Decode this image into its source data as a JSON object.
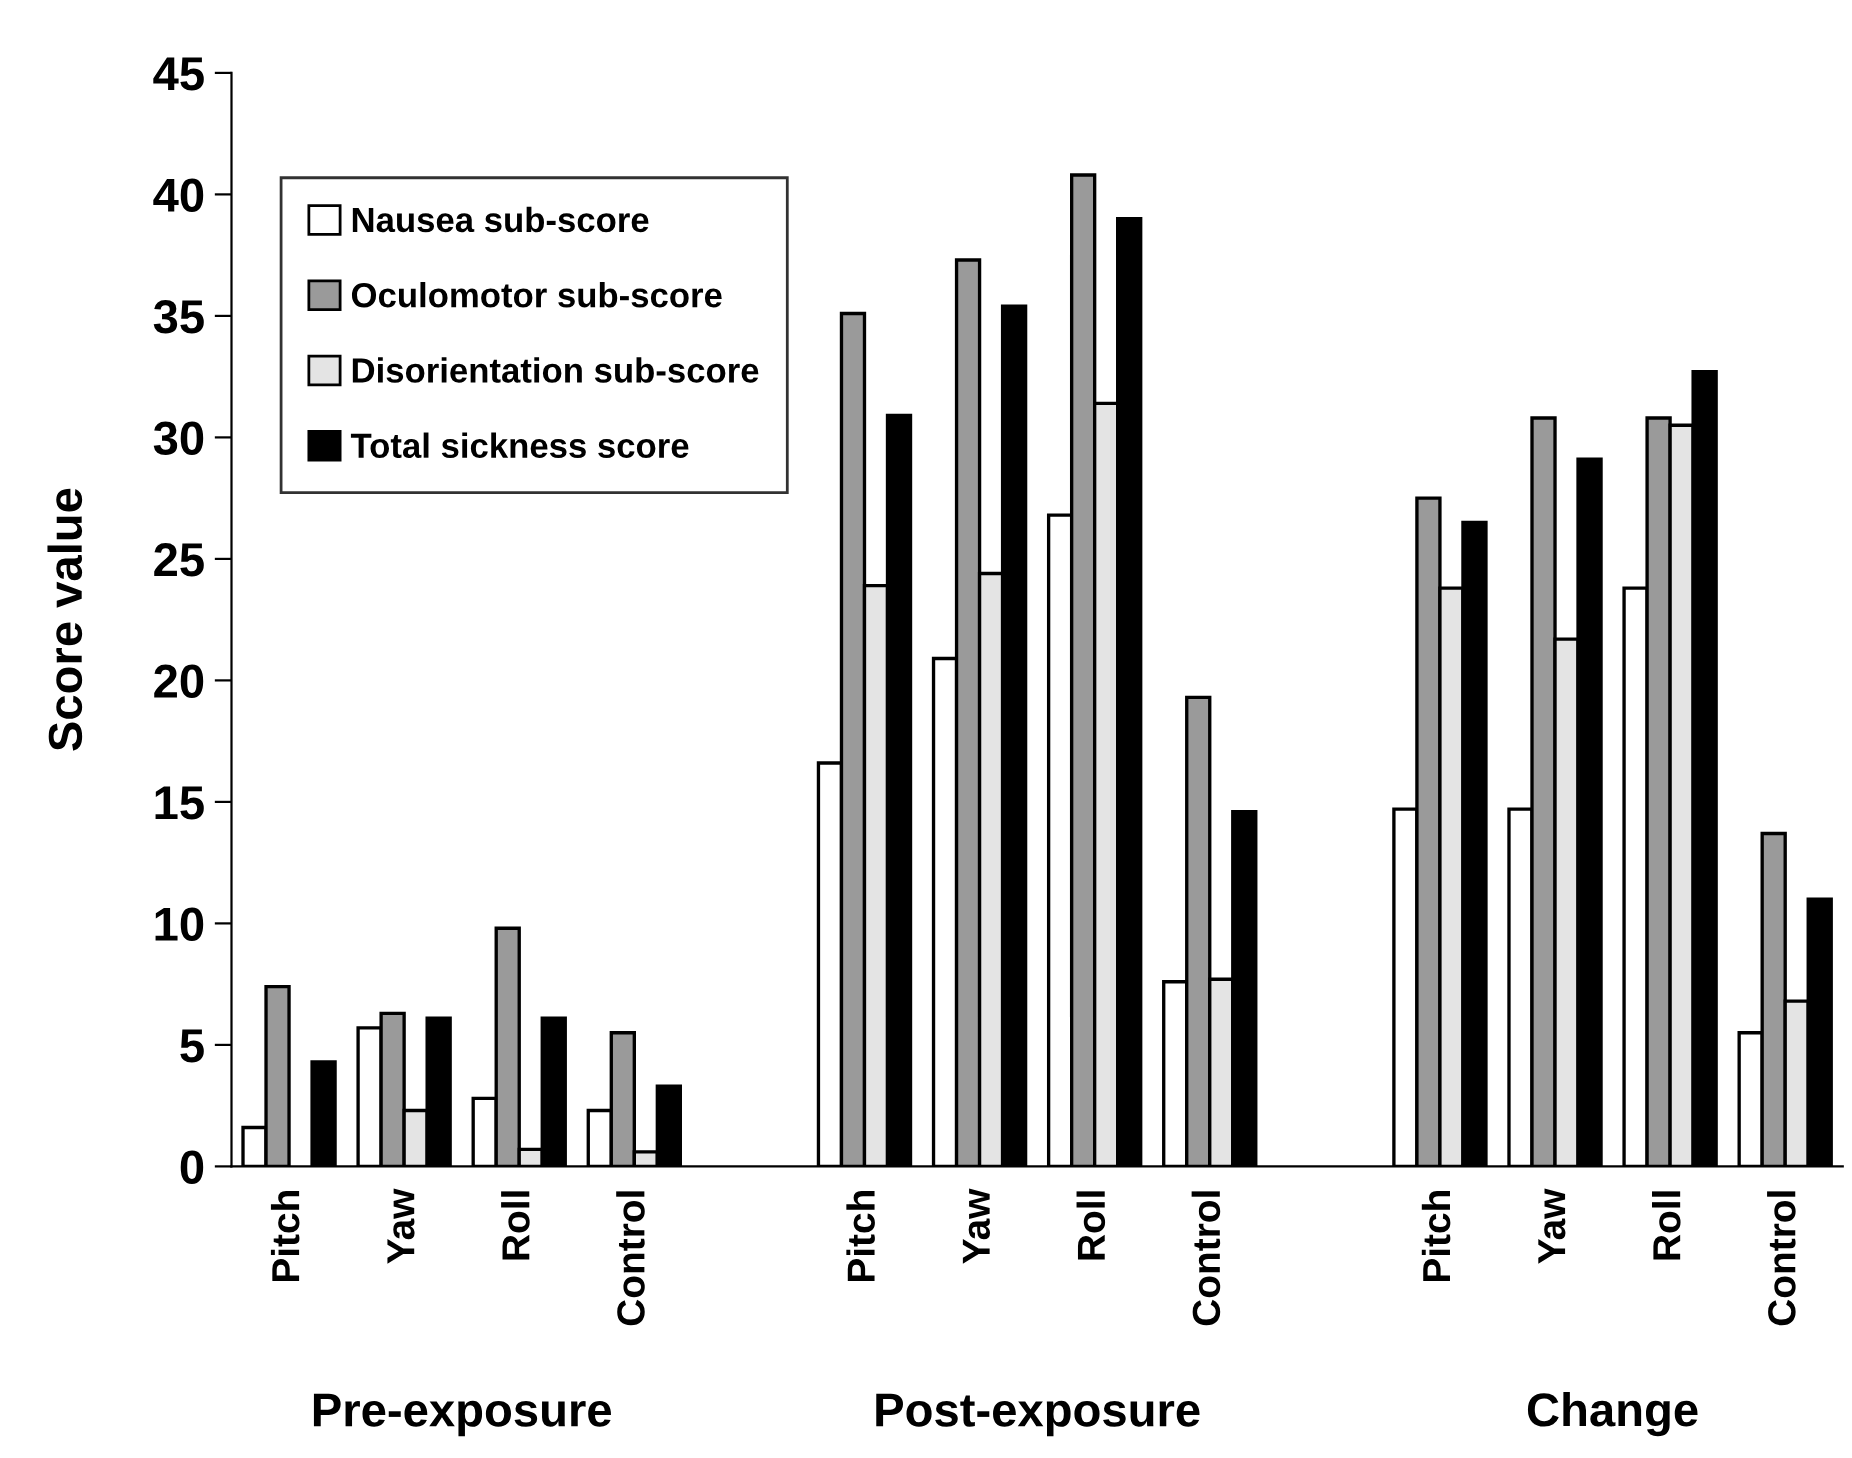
{
  "chart_data": {
    "type": "bar",
    "categories": [
      "Pitch",
      "Yaw",
      "Roll",
      "Control",
      null,
      "Pitch",
      "Yaw",
      "Roll",
      "Control",
      null,
      "Pitch",
      "Yaw",
      "Roll",
      "Control"
    ],
    "series": [
      {
        "name": "Nausea sub-score",
        "color": "#ffffff",
        "values": [
          1.6,
          5.7,
          2.8,
          2.3,
          null,
          16.6,
          20.9,
          26.8,
          7.6,
          null,
          14.7,
          14.7,
          23.8,
          5.5
        ]
      },
      {
        "name": "Oculomotor sub-score",
        "color": "#9a9a9a",
        "values": [
          7.4,
          6.3,
          9.8,
          5.5,
          null,
          35.1,
          37.3,
          40.8,
          19.3,
          null,
          27.5,
          30.8,
          30.8,
          13.7
        ]
      },
      {
        "name": "Disorientation sub-score",
        "color": "#e4e4e4",
        "values": [
          null,
          2.3,
          0.7,
          0.6,
          null,
          23.9,
          24.4,
          31.4,
          7.7,
          null,
          23.8,
          21.7,
          30.5,
          6.8
        ]
      },
      {
        "name": "Total sickness score",
        "color": "#000000",
        "values": [
          4.3,
          6.1,
          6.1,
          3.3,
          null,
          30.9,
          35.4,
          39.0,
          14.6,
          null,
          26.5,
          29.1,
          32.7,
          11.0
        ]
      }
    ],
    "ylabel": "Score value",
    "ylim": [
      0,
      45
    ],
    "yticks": [
      0,
      5,
      10,
      15,
      20,
      25,
      30,
      35,
      40,
      45
    ],
    "annotations": [
      "Pre-exposure",
      "Post-exposure",
      "Change"
    ],
    "legend": "top left",
    "grid": false
  }
}
